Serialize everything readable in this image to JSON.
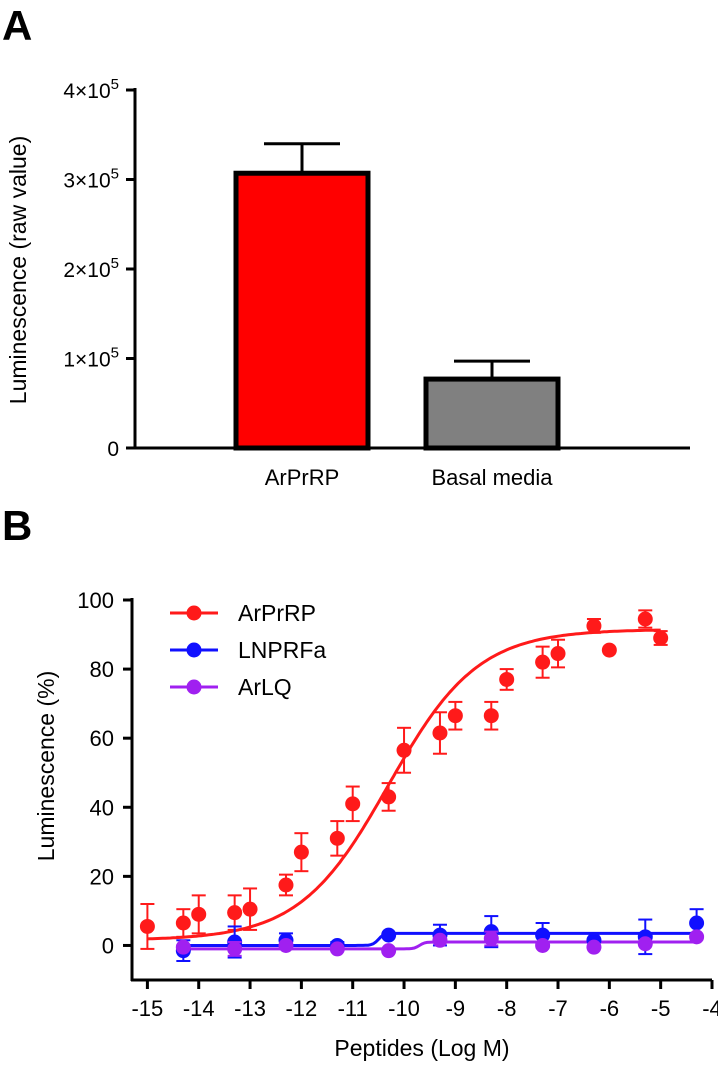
{
  "chart_data": [
    {
      "type": "bar",
      "panel_label": "A",
      "ylabel": "Luminescence (raw value)",
      "categories": [
        "ArPrRP",
        "Basal media"
      ],
      "values": [
        307000,
        77000
      ],
      "errors": [
        33000,
        20000
      ],
      "colors": [
        "#ff0000",
        "#808080"
      ],
      "ylim": [
        0,
        400000
      ],
      "yticks": [
        {
          "value": 0,
          "mant": "0",
          "exp": ""
        },
        {
          "value": 100000,
          "mant": "1×10",
          "exp": "5"
        },
        {
          "value": 200000,
          "mant": "2×10",
          "exp": "5"
        },
        {
          "value": 300000,
          "mant": "3×10",
          "exp": "5"
        },
        {
          "value": 400000,
          "mant": "4×10",
          "exp": "5"
        }
      ]
    },
    {
      "type": "scatter",
      "panel_label": "B",
      "xlabel": "Peptides (Log  M)",
      "ylabel": "Luminescence (%)",
      "xlim": [
        -15.3,
        -4
      ],
      "ylim": [
        -10,
        100
      ],
      "xticks": [
        -15,
        -14,
        -13,
        -12,
        -11,
        -10,
        -9,
        -8,
        -7,
        -6,
        -5,
        -4
      ],
      "yticks": [
        0,
        20,
        40,
        60,
        80,
        100
      ],
      "legend": {
        "position": "top-left"
      },
      "series": [
        {
          "name": "ArPrRP",
          "color": "#ff1a1a",
          "points": [
            {
              "x": -15.0,
              "y": 5.5,
              "err": 6.5
            },
            {
              "x": -14.3,
              "y": 6.5,
              "err": 4
            },
            {
              "x": -14.0,
              "y": 9,
              "err": 5.5
            },
            {
              "x": -13.3,
              "y": 9.5,
              "err": 5
            },
            {
              "x": -13.0,
              "y": 10.5,
              "err": 6
            },
            {
              "x": -12.3,
              "y": 17.5,
              "err": 3
            },
            {
              "x": -12.0,
              "y": 27,
              "err": 5.5
            },
            {
              "x": -11.3,
              "y": 31,
              "err": 5
            },
            {
              "x": -11.0,
              "y": 41,
              "err": 5
            },
            {
              "x": -10.3,
              "y": 43,
              "err": 4
            },
            {
              "x": -10.0,
              "y": 56.5,
              "err": 6.5
            },
            {
              "x": -9.3,
              "y": 61.5,
              "err": 6
            },
            {
              "x": -9.0,
              "y": 66.5,
              "err": 4
            },
            {
              "x": -8.3,
              "y": 66.5,
              "err": 4
            },
            {
              "x": -8.0,
              "y": 77,
              "err": 3
            },
            {
              "x": -7.3,
              "y": 82,
              "err": 4.5
            },
            {
              "x": -7.0,
              "y": 84.5,
              "err": 4
            },
            {
              "x": -6.3,
              "y": 92.5,
              "err": 2
            },
            {
              "x": -6.0,
              "y": 85.5,
              "err": 0
            },
            {
              "x": -5.3,
              "y": 94.5,
              "err": 2.5
            },
            {
              "x": -5.0,
              "y": 89,
              "err": 2
            }
          ],
          "fit": {
            "bottom": 1.5,
            "top": 91.5,
            "log_ec50": -10.3,
            "hill": 0.5
          }
        },
        {
          "name": "LNPRFa",
          "color": "#1010ff",
          "points": [
            {
              "x": -14.3,
              "y": -1.5,
              "err": 3
            },
            {
              "x": -13.3,
              "y": 1,
              "err": 4.5
            },
            {
              "x": -12.3,
              "y": 1.5,
              "err": 2
            },
            {
              "x": -11.3,
              "y": 0,
              "err": 1
            },
            {
              "x": -10.3,
              "y": 3,
              "err": 0
            },
            {
              "x": -9.3,
              "y": 3,
              "err": 3
            },
            {
              "x": -8.3,
              "y": 4,
              "err": 4.5
            },
            {
              "x": -7.3,
              "y": 3,
              "err": 3.5
            },
            {
              "x": -6.3,
              "y": 1.5,
              "err": 2
            },
            {
              "x": -5.3,
              "y": 2.5,
              "err": 5
            },
            {
              "x": -4.3,
              "y": 6.5,
              "err": 4
            }
          ],
          "fit": {
            "bottom": 0,
            "top": 3.5,
            "log_ec50": -10.5,
            "hill": 8
          }
        },
        {
          "name": "ArLQ",
          "color": "#a020f0",
          "points": [
            {
              "x": -14.3,
              "y": -0.5,
              "err": 0
            },
            {
              "x": -13.3,
              "y": -1,
              "err": 2
            },
            {
              "x": -12.3,
              "y": 0,
              "err": 0
            },
            {
              "x": -11.3,
              "y": -1,
              "err": 0
            },
            {
              "x": -10.3,
              "y": -1.5,
              "err": 0
            },
            {
              "x": -9.3,
              "y": 1.5,
              "err": 0
            },
            {
              "x": -8.3,
              "y": 2,
              "err": 2
            },
            {
              "x": -7.3,
              "y": 0,
              "err": 0
            },
            {
              "x": -6.3,
              "y": -0.5,
              "err": 0
            },
            {
              "x": -5.3,
              "y": 0.5,
              "err": 0
            },
            {
              "x": -4.3,
              "y": 2.5,
              "err": 0
            }
          ],
          "fit": {
            "bottom": -1,
            "top": 1,
            "log_ec50": -9.7,
            "hill": 8
          }
        }
      ]
    }
  ]
}
